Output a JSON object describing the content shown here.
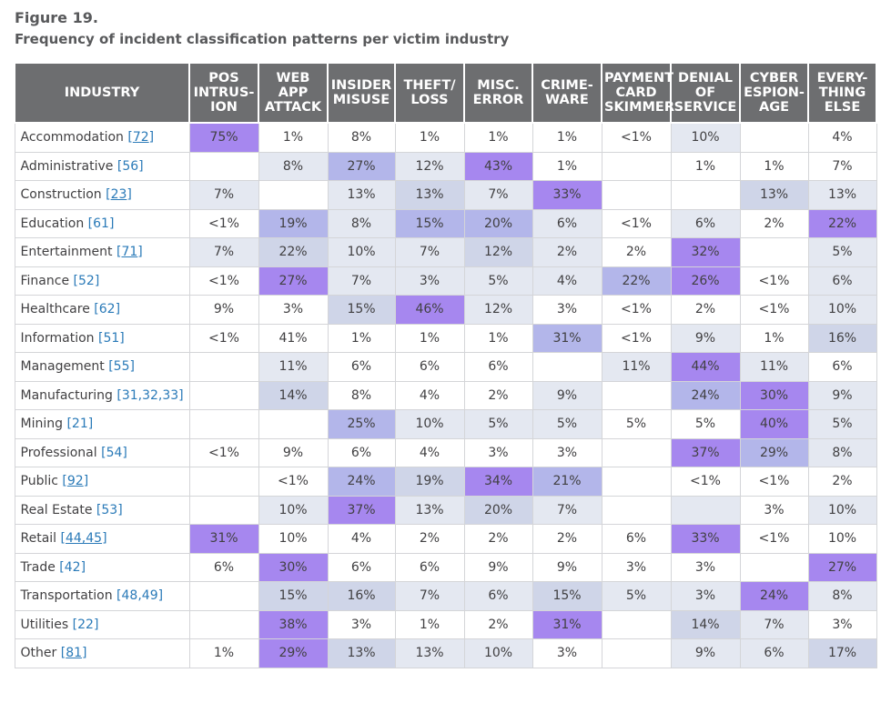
{
  "figure_label": "Figure 19.",
  "title": "Frequency of incident classification patterns per victim industry",
  "chart_data": {
    "type": "heatmap",
    "row_header": "INDUSTRY",
    "columns": [
      [
        "POS",
        "INTRUS-",
        "ION"
      ],
      [
        "WEB",
        "APP",
        "ATTACK"
      ],
      [
        "INSIDER",
        "MISUSE"
      ],
      [
        "THEFT/",
        "LOSS"
      ],
      [
        "MISC.",
        "ERROR"
      ],
      [
        "CRIME-",
        "WARE"
      ],
      [
        "PAYMENT",
        "CARD",
        "SKIMMER"
      ],
      [
        "DENIAL",
        "OF",
        "SERVICE"
      ],
      [
        "CYBER",
        "ESPION-",
        "AGE"
      ],
      [
        "EVERY-",
        "THING",
        "ELSE"
      ]
    ],
    "colors": {
      "header_bg": "#6d6e70",
      "level_0": "#ffffff",
      "level_1": "#e4e8f1",
      "level_2": "#cfd5e8",
      "level_3": "#b3b6ea",
      "level_4": "#a687ef",
      "naics_link": "#2a7ab8"
    },
    "rows": [
      {
        "industry": "Accommodation",
        "naics": "72",
        "underline": true,
        "values": [
          "75%",
          "1%",
          "8%",
          "1%",
          "1%",
          "1%",
          "<1%",
          "10%",
          "",
          "4%"
        ],
        "levels": [
          4,
          0,
          0,
          0,
          0,
          0,
          0,
          1,
          0,
          0
        ]
      },
      {
        "industry": "Administrative",
        "naics": "56",
        "underline": false,
        "values": [
          "",
          "8%",
          "27%",
          "12%",
          "43%",
          "1%",
          "",
          "1%",
          "1%",
          "7%"
        ],
        "levels": [
          0,
          1,
          3,
          1,
          4,
          0,
          0,
          0,
          0,
          0
        ]
      },
      {
        "industry": "Construction",
        "naics": "23",
        "underline": true,
        "values": [
          "7%",
          "",
          "13%",
          "13%",
          "7%",
          "33%",
          "",
          "",
          "13%",
          "13%"
        ],
        "levels": [
          1,
          0,
          1,
          2,
          1,
          4,
          0,
          0,
          2,
          1
        ]
      },
      {
        "industry": "Education",
        "naics": "61",
        "underline": false,
        "values": [
          "<1%",
          "19%",
          "8%",
          "15%",
          "20%",
          "6%",
          "<1%",
          "6%",
          "2%",
          "22%"
        ],
        "levels": [
          0,
          3,
          1,
          3,
          3,
          1,
          0,
          1,
          0,
          4
        ]
      },
      {
        "industry": "Entertainment",
        "naics": "71",
        "underline": true,
        "values": [
          "7%",
          "22%",
          "10%",
          "7%",
          "12%",
          "2%",
          "2%",
          "32%",
          "",
          "5%"
        ],
        "levels": [
          1,
          2,
          1,
          1,
          2,
          1,
          0,
          4,
          0,
          1
        ]
      },
      {
        "industry": "Finance",
        "naics": "52",
        "underline": false,
        "values": [
          "<1%",
          "27%",
          "7%",
          "3%",
          "5%",
          "4%",
          "22%",
          "26%",
          "<1%",
          "6%"
        ],
        "levels": [
          0,
          4,
          1,
          1,
          1,
          1,
          3,
          4,
          0,
          1
        ]
      },
      {
        "industry": "Healthcare",
        "naics": "62",
        "underline": false,
        "values": [
          "9%",
          "3%",
          "15%",
          "46%",
          "12%",
          "3%",
          "<1%",
          "2%",
          "<1%",
          "10%"
        ],
        "levels": [
          0,
          0,
          2,
          4,
          1,
          0,
          0,
          0,
          0,
          1
        ]
      },
      {
        "industry": "Information",
        "naics": "51",
        "underline": false,
        "values": [
          "<1%",
          "41%",
          "1%",
          "1%",
          "1%",
          "31%",
          "<1%",
          "9%",
          "1%",
          "16%"
        ],
        "levels": [
          0,
          0,
          0,
          0,
          0,
          3,
          0,
          1,
          0,
          2
        ]
      },
      {
        "industry": "Management",
        "naics": "55",
        "underline": false,
        "values": [
          "",
          "11%",
          "6%",
          "6%",
          "6%",
          "",
          "11%",
          "44%",
          "11%",
          "6%"
        ],
        "levels": [
          0,
          1,
          0,
          0,
          0,
          0,
          1,
          4,
          1,
          0
        ]
      },
      {
        "industry": "Manufacturing",
        "naics": "31,32,33",
        "underline": false,
        "values": [
          "",
          "14%",
          "8%",
          "4%",
          "2%",
          "9%",
          "",
          "24%",
          "30%",
          "9%"
        ],
        "levels": [
          0,
          2,
          0,
          0,
          0,
          1,
          0,
          3,
          4,
          1
        ]
      },
      {
        "industry": "Mining",
        "naics": "21",
        "underline": false,
        "values": [
          "",
          "",
          "25%",
          "10%",
          "5%",
          "5%",
          "5%",
          "5%",
          "40%",
          "5%"
        ],
        "levels": [
          0,
          0,
          3,
          1,
          1,
          1,
          0,
          0,
          4,
          1
        ]
      },
      {
        "industry": "Professional",
        "naics": "54",
        "underline": false,
        "values": [
          "<1%",
          "9%",
          "6%",
          "4%",
          "3%",
          "3%",
          "",
          "37%",
          "29%",
          "8%"
        ],
        "levels": [
          0,
          0,
          0,
          0,
          0,
          0,
          0,
          4,
          3,
          1
        ]
      },
      {
        "industry": "Public",
        "naics": "92",
        "underline": true,
        "values": [
          "",
          "<1%",
          "24%",
          "19%",
          "34%",
          "21%",
          "",
          "<1%",
          "<1%",
          "2%"
        ],
        "levels": [
          0,
          0,
          3,
          2,
          4,
          3,
          0,
          0,
          0,
          0
        ]
      },
      {
        "industry": "Real Estate",
        "naics": "53",
        "underline": false,
        "values": [
          "",
          "10%",
          "37%",
          "13%",
          "20%",
          "7%",
          "",
          "",
          "3%",
          "10%"
        ],
        "levels": [
          0,
          1,
          4,
          1,
          2,
          1,
          0,
          1,
          0,
          1
        ]
      },
      {
        "industry": "Retail",
        "naics": "44,45",
        "underline": true,
        "values": [
          "31%",
          "10%",
          "4%",
          "2%",
          "2%",
          "2%",
          "6%",
          "33%",
          "<1%",
          "10%"
        ],
        "levels": [
          4,
          0,
          0,
          0,
          0,
          0,
          0,
          4,
          0,
          0
        ]
      },
      {
        "industry": "Trade",
        "naics": "42",
        "underline": false,
        "values": [
          "6%",
          "30%",
          "6%",
          "6%",
          "9%",
          "9%",
          "3%",
          "3%",
          "",
          "27%"
        ],
        "levels": [
          0,
          4,
          0,
          0,
          0,
          0,
          0,
          0,
          0,
          4
        ]
      },
      {
        "industry": "Transportation",
        "naics": "48,49",
        "underline": false,
        "values": [
          "",
          "15%",
          "16%",
          "7%",
          "6%",
          "15%",
          "5%",
          "3%",
          "24%",
          "8%"
        ],
        "levels": [
          0,
          2,
          2,
          1,
          1,
          2,
          1,
          1,
          4,
          1
        ]
      },
      {
        "industry": "Utilities",
        "naics": "22",
        "underline": false,
        "values": [
          "",
          "38%",
          "3%",
          "1%",
          "2%",
          "31%",
          "",
          "14%",
          "7%",
          "3%"
        ],
        "levels": [
          0,
          4,
          0,
          0,
          0,
          4,
          0,
          2,
          1,
          0
        ]
      },
      {
        "industry": "Other",
        "naics": "81",
        "underline": true,
        "values": [
          "1%",
          "29%",
          "13%",
          "13%",
          "10%",
          "3%",
          "",
          "9%",
          "6%",
          "17%"
        ],
        "levels": [
          0,
          4,
          2,
          1,
          1,
          0,
          0,
          1,
          1,
          2
        ]
      }
    ]
  }
}
